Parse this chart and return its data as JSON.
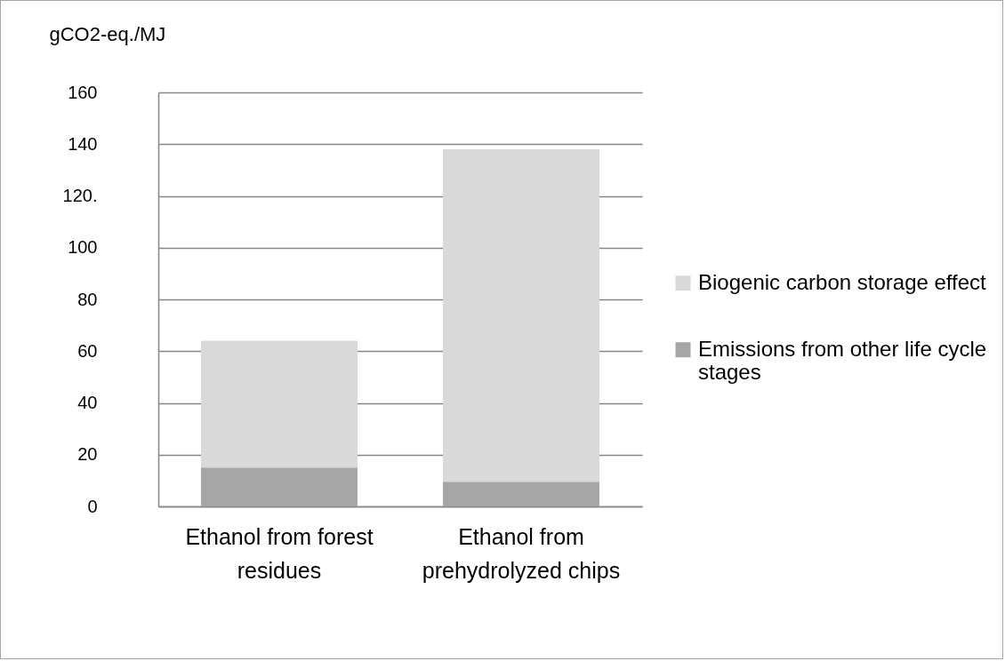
{
  "chart_data": {
    "type": "bar",
    "ylabel": "gCO2-eq./MJ",
    "categories": [
      "Ethanol from forest residues",
      "Ethanol from prehydrolyzed chips"
    ],
    "series": [
      {
        "name": "Emissions from other life cycle stages",
        "color": "#a6a6a6",
        "values": [
          15,
          9.5
        ]
      },
      {
        "name": "Biogenic carbon storage effect",
        "color": "#d9d9d9",
        "values": [
          49,
          128.5
        ]
      }
    ],
    "stacked": true,
    "ylim": [
      0,
      160
    ],
    "yticks": [
      0,
      20,
      40,
      60,
      80,
      100,
      {
        "value": 120,
        "label": "120."
      },
      140,
      160
    ],
    "grid": "y",
    "legend": "right"
  }
}
